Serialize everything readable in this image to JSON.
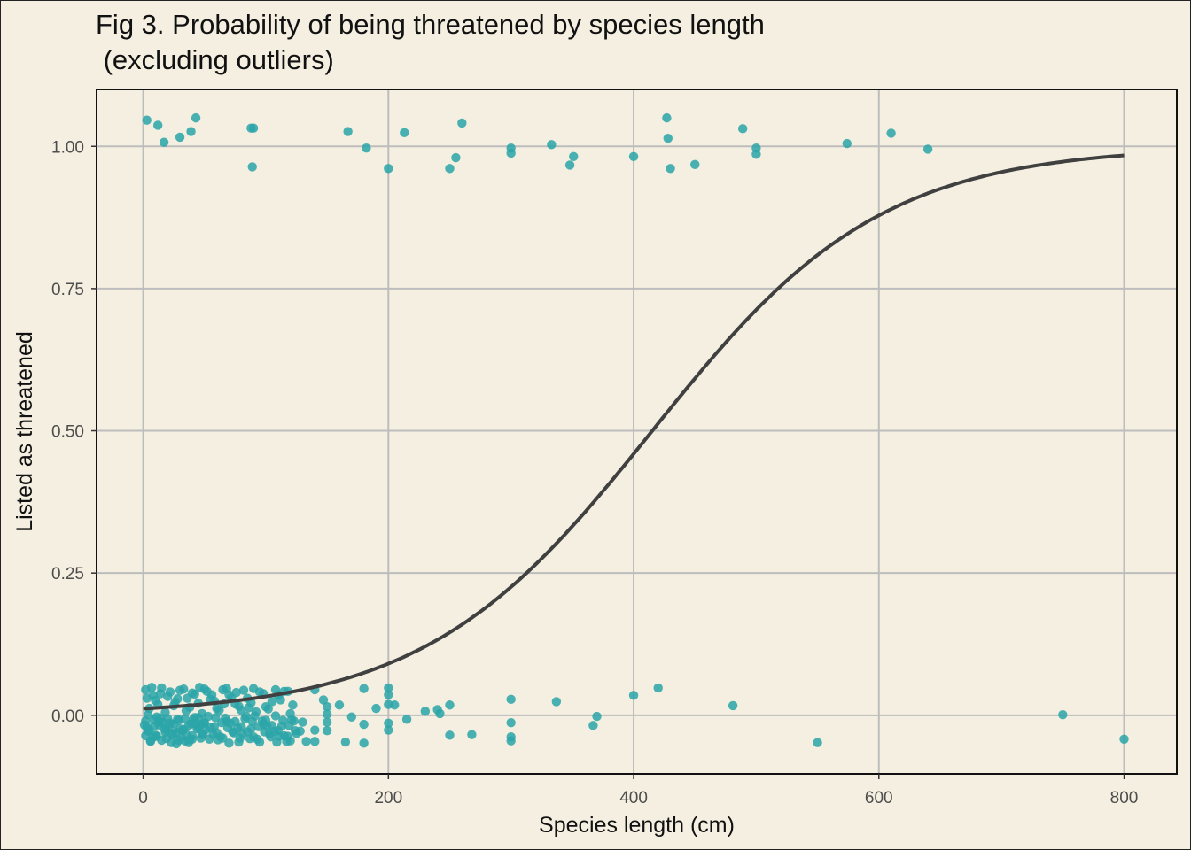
{
  "chart_data": {
    "type": "scatter",
    "title_lines": [
      "Fig 3. Probability of being threatened by species length",
      " (excluding outliers)"
    ],
    "xlabel": "Species length (cm)",
    "ylabel": "Listed as threatened",
    "xlim": [
      -38,
      843
    ],
    "ylim": [
      -0.103,
      1.1
    ],
    "x_ticks": [
      0,
      200,
      400,
      600,
      800
    ],
    "x_tick_labels": [
      "0",
      "200",
      "400",
      "600",
      "800"
    ],
    "y_ticks": [
      0,
      0.25,
      0.5,
      0.75,
      1.0
    ],
    "y_tick_labels": [
      "0.00",
      "0.25",
      "0.50",
      "0.75",
      "1.00"
    ],
    "grid": true,
    "point_color": "#2aa5a8",
    "curve_color": "#404040",
    "panel_border_color": "#111111",
    "grid_color": "#bdbdbd",
    "background_color": "#f4efe0",
    "logistic_fit": {
      "intercept": -4.447,
      "slope": 0.01071,
      "x_range": [
        0,
        800
      ]
    },
    "points": [
      [
        3,
        1.046
      ],
      [
        12,
        1.037
      ],
      [
        17,
        1.007
      ],
      [
        30,
        1.016
      ],
      [
        39,
        1.026
      ],
      [
        43,
        1.05
      ],
      [
        88,
        1.032
      ],
      [
        90,
        1.032
      ],
      [
        89,
        0.964
      ],
      [
        167,
        1.026
      ],
      [
        182,
        0.997
      ],
      [
        213,
        1.024
      ],
      [
        200,
        0.961
      ],
      [
        260,
        1.041
      ],
      [
        255,
        0.98
      ],
      [
        250,
        0.961
      ],
      [
        300,
        0.997
      ],
      [
        300,
        0.988
      ],
      [
        333,
        1.003
      ],
      [
        351,
        0.982
      ],
      [
        348,
        0.967
      ],
      [
        400,
        0.982
      ],
      [
        427,
        1.05
      ],
      [
        428,
        1.014
      ],
      [
        430,
        0.961
      ],
      [
        450,
        0.968
      ],
      [
        489,
        1.031
      ],
      [
        500,
        0.997
      ],
      [
        500,
        0.986
      ],
      [
        574,
        1.005
      ],
      [
        610,
        1.023
      ],
      [
        640,
        0.995
      ],
      [
        180,
        0.047
      ],
      [
        200,
        0.048
      ],
      [
        200,
        0.036
      ],
      [
        200,
        0.019
      ],
      [
        205,
        0.018
      ],
      [
        190,
        0.012
      ],
      [
        230,
        0.007
      ],
      [
        240,
        0.01
      ],
      [
        242,
        0.003
      ],
      [
        250,
        0.018
      ],
      [
        215,
        -0.007
      ],
      [
        200,
        -0.014
      ],
      [
        200,
        -0.026
      ],
      [
        180,
        -0.016
      ],
      [
        180,
        -0.049
      ],
      [
        165,
        -0.047
      ],
      [
        250,
        -0.035
      ],
      [
        268,
        -0.034
      ],
      [
        300,
        0.028
      ],
      [
        300,
        -0.013
      ],
      [
        300,
        -0.038
      ],
      [
        300,
        -0.045
      ],
      [
        337,
        0.024
      ],
      [
        370,
        -0.002
      ],
      [
        367,
        -0.018
      ],
      [
        400,
        0.035
      ],
      [
        420,
        0.048
      ],
      [
        481,
        0.017
      ],
      [
        550,
        -0.048
      ],
      [
        750,
        0.001
      ],
      [
        800,
        -0.042
      ],
      [
        140,
        0.045
      ],
      [
        147,
        0.027
      ],
      [
        150,
        0.015
      ],
      [
        150,
        0.002
      ],
      [
        160,
        0.018
      ],
      [
        170,
        -0.003
      ],
      [
        150,
        -0.012
      ],
      [
        150,
        -0.027
      ],
      [
        140,
        -0.026
      ],
      [
        140,
        -0.046
      ],
      [
        125,
        -0.032
      ],
      [
        130,
        -0.012
      ],
      [
        120,
        0.003
      ],
      [
        115,
        0.042
      ],
      [
        110,
        0.035
      ],
      [
        105,
        0.024
      ],
      [
        100,
        0.015
      ],
      [
        95,
        0.041
      ],
      [
        90,
        0.047
      ],
      [
        85,
        0.03
      ],
      [
        80,
        0.009
      ],
      [
        75,
        0.02
      ],
      [
        70,
        0.036
      ],
      [
        65,
        0.045
      ],
      [
        60,
        0.012
      ],
      [
        55,
        0.028
      ],
      [
        50,
        0.046
      ],
      [
        45,
        0.021
      ],
      [
        40,
        0.039
      ],
      [
        35,
        0.008
      ],
      [
        30,
        0.044
      ],
      [
        25,
        0.017
      ],
      [
        20,
        0.033
      ],
      [
        15,
        0.048
      ],
      [
        10,
        0.026
      ],
      [
        5,
        0.012
      ],
      [
        2,
        0.045
      ],
      [
        8,
        0.035
      ],
      [
        12,
        0.019
      ],
      [
        18,
        0.005
      ],
      [
        22,
        0.041
      ],
      [
        28,
        0.029
      ],
      [
        33,
        0.046
      ],
      [
        38,
        0.014
      ],
      [
        42,
        0.037
      ],
      [
        48,
        0.003
      ],
      [
        52,
        0.042
      ],
      [
        58,
        0.025
      ],
      [
        62,
        0.009
      ],
      [
        68,
        0.047
      ],
      [
        72,
        0.031
      ],
      [
        78,
        0.016
      ],
      [
        82,
        0.044
      ],
      [
        88,
        0.022
      ],
      [
        92,
        0.006
      ],
      [
        98,
        0.038
      ],
      [
        102,
        0.011
      ],
      [
        108,
        0.045
      ],
      [
        112,
        0.027
      ],
      [
        118,
        0.042
      ],
      [
        122,
        0.018
      ],
      [
        3,
        0.03
      ],
      [
        7,
        0.049
      ],
      [
        14,
        0.038
      ],
      [
        26,
        0.023
      ],
      [
        36,
        0.03
      ],
      [
        46,
        0.049
      ],
      [
        56,
        0.036
      ],
      [
        66,
        0.02
      ],
      [
        76,
        0.04
      ],
      [
        86,
        0.013
      ],
      [
        4,
        0.001
      ],
      [
        9,
        -0.008
      ],
      [
        13,
        -0.017
      ],
      [
        19,
        -0.026
      ],
      [
        24,
        -0.035
      ],
      [
        29,
        -0.044
      ],
      [
        34,
        -0.006
      ],
      [
        39,
        -0.015
      ],
      [
        44,
        -0.024
      ],
      [
        49,
        -0.033
      ],
      [
        54,
        -0.042
      ],
      [
        59,
        -0.004
      ],
      [
        64,
        -0.013
      ],
      [
        69,
        -0.022
      ],
      [
        74,
        -0.031
      ],
      [
        79,
        -0.04
      ],
      [
        84,
        -0.002
      ],
      [
        89,
        -0.011
      ],
      [
        94,
        -0.02
      ],
      [
        99,
        -0.029
      ],
      [
        104,
        -0.038
      ],
      [
        109,
        -0.047
      ],
      [
        114,
        -0.009
      ],
      [
        119,
        -0.018
      ],
      [
        124,
        -0.027
      ],
      [
        2,
        -0.036
      ],
      [
        6,
        -0.045
      ],
      [
        11,
        -0.003
      ],
      [
        16,
        -0.012
      ],
      [
        21,
        -0.021
      ],
      [
        27,
        -0.03
      ],
      [
        31,
        -0.039
      ],
      [
        37,
        -0.048
      ],
      [
        41,
        -0.007
      ],
      [
        47,
        -0.016
      ],
      [
        51,
        -0.025
      ],
      [
        57,
        -0.034
      ],
      [
        61,
        -0.043
      ],
      [
        67,
        -0.005
      ],
      [
        71,
        -0.014
      ],
      [
        77,
        -0.023
      ],
      [
        81,
        -0.032
      ],
      [
        87,
        -0.041
      ],
      [
        91,
        -0.001
      ],
      [
        97,
        -0.01
      ],
      [
        101,
        -0.019
      ],
      [
        107,
        -0.028
      ],
      [
        111,
        -0.037
      ],
      [
        117,
        -0.046
      ],
      [
        121,
        -0.008
      ],
      [
        1,
        -0.017
      ],
      [
        5,
        -0.026
      ],
      [
        10,
        -0.035
      ],
      [
        15,
        -0.044
      ],
      [
        20,
        -0.006
      ],
      [
        25,
        -0.015
      ],
      [
        30,
        -0.024
      ],
      [
        35,
        -0.033
      ],
      [
        40,
        -0.042
      ],
      [
        45,
        -0.004
      ],
      [
        50,
        -0.013
      ],
      [
        55,
        -0.022
      ],
      [
        60,
        -0.031
      ],
      [
        65,
        -0.04
      ],
      [
        70,
        -0.049
      ],
      [
        75,
        -0.011
      ],
      [
        80,
        -0.02
      ],
      [
        85,
        -0.029
      ],
      [
        90,
        -0.038
      ],
      [
        95,
        -0.047
      ],
      [
        100,
        -0.009
      ],
      [
        105,
        -0.018
      ],
      [
        110,
        -0.027
      ],
      [
        115,
        -0.036
      ],
      [
        120,
        -0.045
      ],
      [
        3,
        -0.021
      ],
      [
        8,
        -0.039
      ],
      [
        13,
        -0.012
      ],
      [
        18,
        -0.03
      ],
      [
        23,
        -0.048
      ],
      [
        28,
        -0.007
      ],
      [
        33,
        -0.025
      ],
      [
        38,
        -0.043
      ],
      [
        43,
        -0.016
      ],
      [
        48,
        -0.034
      ],
      [
        53,
        -0.002
      ],
      [
        58,
        -0.02
      ],
      [
        63,
        -0.038
      ],
      [
        68,
        -0.011
      ],
      [
        73,
        -0.029
      ],
      [
        78,
        -0.047
      ],
      [
        83,
        -0.006
      ],
      [
        88,
        -0.024
      ],
      [
        93,
        -0.042
      ],
      [
        98,
        -0.015
      ],
      [
        103,
        -0.033
      ],
      [
        108,
        -0.001
      ],
      [
        113,
        -0.019
      ],
      [
        118,
        -0.037
      ],
      [
        123,
        -0.01
      ],
      [
        128,
        -0.028
      ],
      [
        133,
        -0.046
      ],
      [
        2,
        -0.01
      ],
      [
        4,
        -0.028
      ],
      [
        6,
        -0.046
      ],
      [
        9,
        -0.019
      ],
      [
        11,
        -0.037
      ],
      [
        14,
        -0.005
      ],
      [
        17,
        -0.023
      ],
      [
        19,
        -0.041
      ],
      [
        22,
        -0.014
      ],
      [
        24,
        -0.032
      ],
      [
        27,
        -0.05
      ],
      [
        29,
        -0.009
      ],
      [
        32,
        -0.027
      ],
      [
        34,
        -0.045
      ],
      [
        37,
        -0.018
      ],
      [
        40,
        -0.036
      ],
      [
        42,
        -0.004
      ],
      [
        45,
        -0.022
      ],
      [
        47,
        -0.04
      ],
      [
        50,
        -0.013
      ]
    ]
  }
}
